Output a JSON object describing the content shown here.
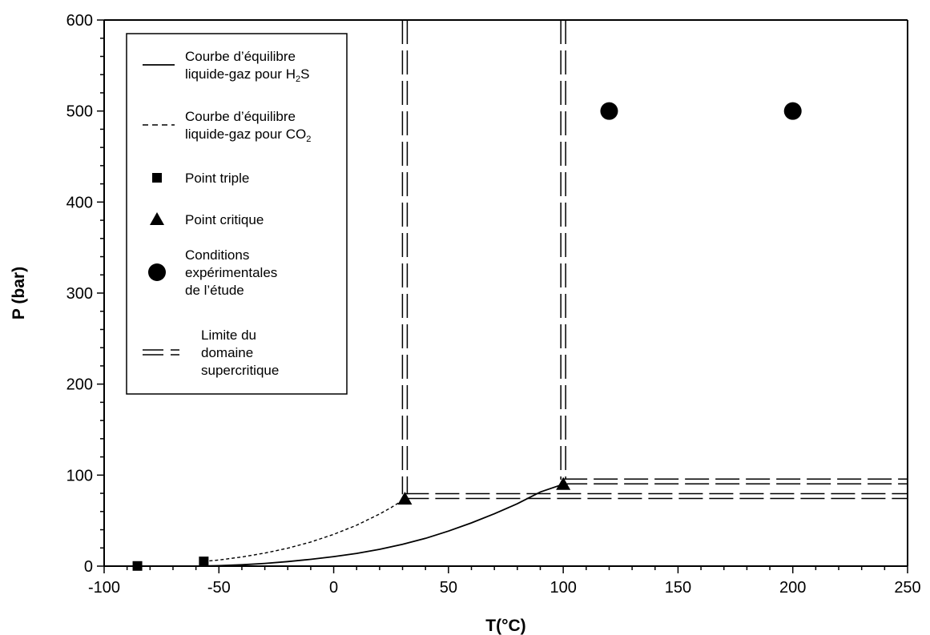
{
  "chart_data": {
    "type": "line",
    "xlabel": "T(°C)",
    "ylabel": "P (bar)",
    "xlim": [
      -100,
      250
    ],
    "ylim": [
      0,
      600
    ],
    "xticks": [
      -100,
      -50,
      0,
      50,
      100,
      150,
      200,
      250
    ],
    "yticks": [
      0,
      100,
      200,
      300,
      400,
      500,
      600
    ],
    "grid": false,
    "legend_position": "top-left",
    "series": [
      {
        "kind": "h2s_curve",
        "points": [
          [
            -60,
            0
          ],
          [
            -50,
            0.5
          ],
          [
            -40,
            1.5
          ],
          [
            -30,
            3
          ],
          [
            -20,
            5
          ],
          [
            -10,
            7.5
          ],
          [
            0,
            10.5
          ],
          [
            10,
            14
          ],
          [
            20,
            18.5
          ],
          [
            30,
            24
          ],
          [
            40,
            30.5
          ],
          [
            50,
            38.5
          ],
          [
            60,
            47.5
          ],
          [
            70,
            57.5
          ],
          [
            80,
            68.5
          ],
          [
            90,
            81.5
          ],
          [
            100,
            90
          ]
        ]
      },
      {
        "kind": "co2_curve",
        "points": [
          [
            -56.6,
            5.2
          ],
          [
            -50,
            6.8
          ],
          [
            -40,
            10
          ],
          [
            -30,
            14.3
          ],
          [
            -20,
            19.7
          ],
          [
            -10,
            26.5
          ],
          [
            0,
            34.9
          ],
          [
            10,
            45
          ],
          [
            20,
            57.3
          ],
          [
            25,
            64.3
          ],
          [
            31,
            73.8
          ]
        ]
      },
      {
        "kind": "triple_points",
        "points": [
          [
            -85.5,
            0.2
          ],
          [
            -56.6,
            5.2
          ]
        ]
      },
      {
        "kind": "critical_points",
        "points": [
          [
            31,
            73.8
          ],
          [
            100,
            90
          ]
        ]
      },
      {
        "kind": "experimental_conditions",
        "points": [
          [
            120,
            500
          ],
          [
            200,
            500
          ]
        ]
      },
      {
        "kind": "supercritical_limits",
        "vertical_x": [
          31,
          100
        ],
        "horizontal_y": [
          77,
          93
        ]
      }
    ],
    "legend": [
      {
        "kind": "solid-line",
        "text": "Courbe d’équilibre liquide-gaz pour H",
        "sub": "2",
        "tail": "S"
      },
      {
        "kind": "dashed-line",
        "text": "Courbe d’équilibre liquide-gaz pour CO",
        "sub": "2",
        "tail": ""
      },
      {
        "kind": "square",
        "text": "Point triple"
      },
      {
        "kind": "triangle",
        "text": "Point critique"
      },
      {
        "kind": "circle",
        "text": "Conditions expérimentales de l’étude"
      },
      {
        "kind": "double-line",
        "text": "Limite du domaine supercritique"
      }
    ]
  }
}
